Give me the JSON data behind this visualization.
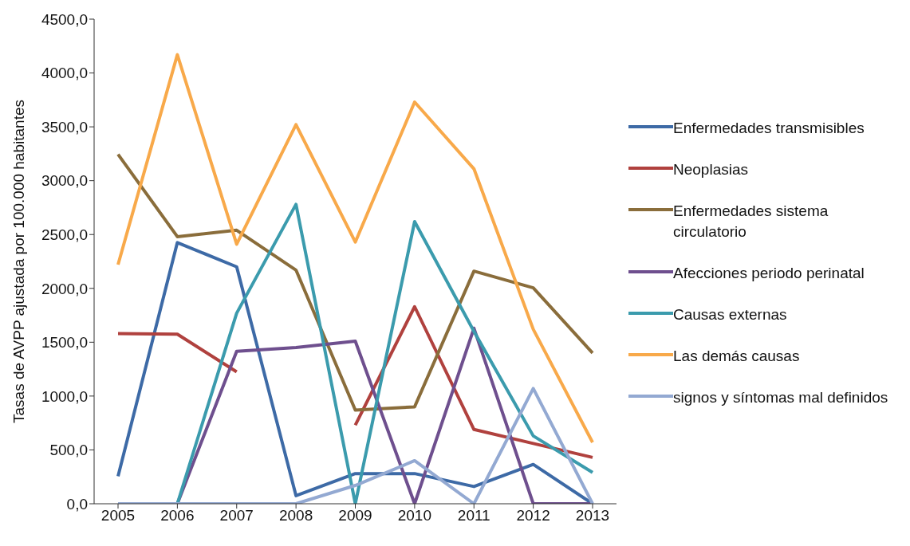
{
  "chart_data": {
    "type": "line",
    "ylabel": "Tasas de AVPP ajustada por 100.000 habitantes",
    "categories": [
      "2005",
      "2006",
      "2007",
      "2008",
      "2009",
      "2010",
      "2011",
      "2012",
      "2013"
    ],
    "series": [
      {
        "name": "Enfermedades transmisibles",
        "color": "#3d6aa6",
        "values": [
          255,
          2425,
          2200,
          75,
          280,
          280,
          160,
          365,
          0
        ]
      },
      {
        "name": "Neoplasias",
        "color": "#b0413e",
        "values": [
          1580,
          1575,
          1225,
          null,
          730,
          1830,
          690,
          560,
          430
        ]
      },
      {
        "name": "Enfermedades sistema circulatorio",
        "color": "#8a6d3b",
        "values": [
          3245,
          2480,
          2540,
          2170,
          870,
          900,
          2160,
          2005,
          1400
        ]
      },
      {
        "name": "Afecciones periodo perinatal",
        "color": "#6e4f8e",
        "values": [
          0,
          0,
          1415,
          1450,
          1510,
          0,
          1630,
          0,
          0
        ]
      },
      {
        "name": "Causas externas",
        "color": "#3b9bad",
        "values": [
          0,
          0,
          1770,
          2780,
          0,
          2620,
          1600,
          630,
          290
        ]
      },
      {
        "name": "Las demás causas",
        "color": "#f8a94a",
        "values": [
          2220,
          4170,
          2410,
          3520,
          2430,
          3730,
          3110,
          1620,
          570
        ]
      },
      {
        "name": "signos y síntomas mal definidos",
        "color": "#93a9d2",
        "values": [
          0,
          0,
          0,
          0,
          170,
          400,
          0,
          1070,
          0
        ]
      }
    ],
    "ylim": [
      0,
      4500
    ],
    "yticks": [
      {
        "value": 0,
        "label": "0,0"
      },
      {
        "value": 500,
        "label": "500,0"
      },
      {
        "value": 1000,
        "label": "1000,0"
      },
      {
        "value": 1500,
        "label": "1500,0"
      },
      {
        "value": 2000,
        "label": "2000,0"
      },
      {
        "value": 2500,
        "label": "2500,0"
      },
      {
        "value": 3000,
        "label": "3000,0"
      },
      {
        "value": 3500,
        "label": "3500,0"
      },
      {
        "value": 4000,
        "label": "4000,0"
      },
      {
        "value": 4500,
        "label": "4500,0"
      }
    ],
    "grid": false,
    "legend": "right",
    "marker": "none",
    "line_style": "solid"
  }
}
